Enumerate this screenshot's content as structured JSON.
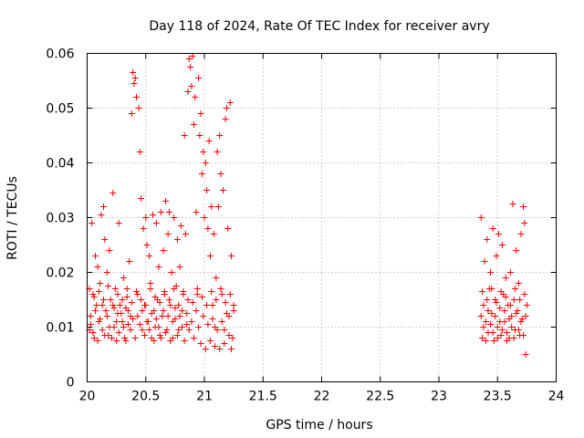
{
  "chart_data": {
    "type": "scatter",
    "title": "Day 118 of 2024, Rate Of TEC Index for receiver avry",
    "xlabel": "GPS time / hours",
    "ylabel": "ROTI / TECUs",
    "xlim": [
      20,
      24
    ],
    "ylim": [
      0,
      0.06
    ],
    "xticks": [
      20,
      20.5,
      21,
      21.5,
      22,
      22.5,
      23,
      23.5,
      24
    ],
    "xtick_labels": [
      "20",
      "20.5",
      "21",
      "21.5",
      "22",
      "22.5",
      "23",
      "23.5",
      "24"
    ],
    "yticks": [
      0,
      0.01,
      0.02,
      0.03,
      0.04,
      0.05,
      0.06
    ],
    "ytick_labels": [
      "0",
      "0.01",
      "0.02",
      "0.03",
      "0.04",
      "0.05",
      "0.06"
    ],
    "grid": true,
    "marker": "plus",
    "marker_color": "#ff0000",
    "series": [
      {
        "name": "ROTI",
        "points": [
          [
            20.02,
            0.0095
          ],
          [
            20.03,
            0.012
          ],
          [
            20.04,
            0.029
          ],
          [
            20.05,
            0.016
          ],
          [
            20.06,
            0.008
          ],
          [
            20.07,
            0.023
          ],
          [
            20.08,
            0.014
          ],
          [
            20.09,
            0.021
          ],
          [
            20.1,
            0.011
          ],
          [
            20.11,
            0.018
          ],
          [
            20.12,
            0.0305
          ],
          [
            20.13,
            0.0095
          ],
          [
            20.14,
            0.032
          ],
          [
            20.15,
            0.026
          ],
          [
            20.16,
            0.013
          ],
          [
            20.17,
            0.02
          ],
          [
            20.18,
            0.0085
          ],
          [
            20.19,
            0.024
          ],
          [
            20.2,
            0.015
          ],
          [
            20.22,
            0.0345
          ],
          [
            20.23,
            0.01
          ],
          [
            20.24,
            0.017
          ],
          [
            20.25,
            0.0075
          ],
          [
            20.26,
            0.0125
          ],
          [
            20.27,
            0.029
          ],
          [
            20.28,
            0.014
          ],
          [
            20.3,
            0.011
          ],
          [
            20.31,
            0.019
          ],
          [
            20.32,
            0.008
          ],
          [
            20.33,
            0.0135
          ],
          [
            20.34,
            0.0155
          ],
          [
            20.35,
            0.0105
          ],
          [
            20.36,
            0.022
          ],
          [
            20.37,
            0.012
          ],
          [
            20.38,
            0.049
          ],
          [
            20.39,
            0.0565
          ],
          [
            20.4,
            0.0545
          ],
          [
            20.41,
            0.0555
          ],
          [
            20.42,
            0.052
          ],
          [
            20.43,
            0.016
          ],
          [
            20.44,
            0.05
          ],
          [
            20.45,
            0.042
          ],
          [
            20.46,
            0.0335
          ],
          [
            20.47,
            0.0095
          ],
          [
            20.48,
            0.028
          ],
          [
            20.49,
            0.014
          ],
          [
            20.5,
            0.03
          ],
          [
            20.51,
            0.025
          ],
          [
            20.52,
            0.011
          ],
          [
            20.53,
            0.023
          ],
          [
            20.54,
            0.018
          ],
          [
            20.55,
            0.008
          ],
          [
            20.56,
            0.0305
          ],
          [
            20.57,
            0.013
          ],
          [
            20.58,
            0.01
          ],
          [
            20.59,
            0.029
          ],
          [
            20.6,
            0.015
          ],
          [
            20.61,
            0.021
          ],
          [
            20.62,
            0.0085
          ],
          [
            20.63,
            0.031
          ],
          [
            20.64,
            0.012
          ],
          [
            20.65,
            0.024
          ],
          [
            20.66,
            0.016
          ],
          [
            20.67,
            0.033
          ],
          [
            20.68,
            0.0095
          ],
          [
            20.69,
            0.027
          ],
          [
            20.7,
            0.031
          ],
          [
            20.71,
            0.014
          ],
          [
            20.72,
            0.02
          ],
          [
            20.73,
            0.008
          ],
          [
            20.74,
            0.03
          ],
          [
            20.75,
            0.0115
          ],
          [
            20.76,
            0.0175
          ],
          [
            20.77,
            0.026
          ],
          [
            20.78,
            0.0095
          ],
          [
            20.79,
            0.021
          ],
          [
            20.8,
            0.0285
          ],
          [
            20.81,
            0.013
          ],
          [
            20.82,
            0.016
          ],
          [
            20.83,
            0.045
          ],
          [
            20.84,
            0.027
          ],
          [
            20.85,
            0.0105
          ],
          [
            20.86,
            0.053
          ],
          [
            20.87,
            0.059
          ],
          [
            20.88,
            0.0575
          ],
          [
            20.89,
            0.054
          ],
          [
            20.9,
            0.0595
          ],
          [
            20.91,
            0.047
          ],
          [
            20.92,
            0.052
          ],
          [
            20.93,
            0.031
          ],
          [
            20.94,
            0.016
          ],
          [
            20.95,
            0.0555
          ],
          [
            20.96,
            0.045
          ],
          [
            20.97,
            0.049
          ],
          [
            20.98,
            0.038
          ],
          [
            20.99,
            0.042
          ],
          [
            21.0,
            0.03
          ],
          [
            21.01,
            0.04
          ],
          [
            21.02,
            0.035
          ],
          [
            21.03,
            0.028
          ],
          [
            21.04,
            0.044
          ],
          [
            21.05,
            0.023
          ],
          [
            21.06,
            0.032
          ],
          [
            21.07,
            0.014
          ],
          [
            21.08,
            0.027
          ],
          [
            21.09,
            0.01
          ],
          [
            21.1,
            0.019
          ],
          [
            21.11,
            0.042
          ],
          [
            21.12,
            0.032
          ],
          [
            21.13,
            0.045
          ],
          [
            21.14,
            0.038
          ],
          [
            21.15,
            0.016
          ],
          [
            21.16,
            0.035
          ],
          [
            21.17,
            0.0095
          ],
          [
            21.18,
            0.048
          ],
          [
            21.19,
            0.05
          ],
          [
            21.2,
            0.028
          ],
          [
            21.21,
            0.012
          ],
          [
            21.22,
            0.051
          ],
          [
            21.23,
            0.023
          ],
          [
            21.24,
            0.008
          ],
          [
            21.25,
            0.014
          ],
          [
            20.03,
            0.0105
          ],
          [
            20.05,
            0.009
          ],
          [
            20.07,
            0.013
          ],
          [
            20.09,
            0.0075
          ],
          [
            20.11,
            0.0115
          ],
          [
            20.13,
            0.014
          ],
          [
            20.15,
            0.0085
          ],
          [
            20.17,
            0.012
          ],
          [
            20.19,
            0.01
          ],
          [
            20.21,
            0.008
          ],
          [
            20.23,
            0.0135
          ],
          [
            20.25,
            0.011
          ],
          [
            20.27,
            0.009
          ],
          [
            20.29,
            0.0125
          ],
          [
            20.31,
            0.01
          ],
          [
            20.33,
            0.0075
          ],
          [
            20.35,
            0.013
          ],
          [
            20.37,
            0.0095
          ],
          [
            20.39,
            0.0115
          ],
          [
            20.41,
            0.008
          ],
          [
            20.43,
            0.012
          ],
          [
            20.45,
            0.0105
          ],
          [
            20.47,
            0.013
          ],
          [
            20.49,
            0.0085
          ],
          [
            20.51,
            0.011
          ],
          [
            20.53,
            0.0095
          ],
          [
            20.55,
            0.0125
          ],
          [
            20.57,
            0.0075
          ],
          [
            20.59,
            0.0115
          ],
          [
            20.61,
            0.01
          ],
          [
            20.63,
            0.008
          ],
          [
            20.65,
            0.013
          ],
          [
            20.67,
            0.009
          ],
          [
            20.69,
            0.012
          ],
          [
            20.71,
            0.0075
          ],
          [
            20.73,
            0.011
          ],
          [
            20.75,
            0.0135
          ],
          [
            20.77,
            0.0085
          ],
          [
            20.79,
            0.012
          ],
          [
            20.81,
            0.01
          ],
          [
            20.83,
            0.0075
          ],
          [
            20.85,
            0.0125
          ],
          [
            20.87,
            0.0095
          ],
          [
            20.89,
            0.011
          ],
          [
            20.91,
            0.008
          ],
          [
            20.93,
            0.013
          ],
          [
            20.95,
            0.01
          ],
          [
            20.97,
            0.007
          ],
          [
            20.99,
            0.012
          ],
          [
            21.01,
            0.006
          ],
          [
            21.03,
            0.0105
          ],
          [
            21.05,
            0.0075
          ],
          [
            21.07,
            0.0115
          ],
          [
            21.09,
            0.0065
          ],
          [
            21.11,
            0.0095
          ],
          [
            21.13,
            0.006
          ],
          [
            21.15,
            0.011
          ],
          [
            21.17,
            0.007
          ],
          [
            21.19,
            0.0125
          ],
          [
            21.21,
            0.0085
          ],
          [
            21.23,
            0.006
          ],
          [
            21.25,
            0.013
          ],
          [
            20.02,
            0.017
          ],
          [
            20.06,
            0.0155
          ],
          [
            20.1,
            0.0165
          ],
          [
            20.14,
            0.015
          ],
          [
            20.18,
            0.0175
          ],
          [
            20.22,
            0.014
          ],
          [
            20.26,
            0.016
          ],
          [
            20.3,
            0.015
          ],
          [
            20.34,
            0.017
          ],
          [
            20.38,
            0.0145
          ],
          [
            20.42,
            0.0165
          ],
          [
            20.46,
            0.015
          ],
          [
            20.5,
            0.014
          ],
          [
            20.54,
            0.017
          ],
          [
            20.58,
            0.0155
          ],
          [
            20.62,
            0.0145
          ],
          [
            20.66,
            0.0165
          ],
          [
            20.7,
            0.015
          ],
          [
            20.74,
            0.017
          ],
          [
            20.78,
            0.014
          ],
          [
            20.82,
            0.0165
          ],
          [
            20.86,
            0.015
          ],
          [
            20.9,
            0.0145
          ],
          [
            20.94,
            0.017
          ],
          [
            20.98,
            0.0155
          ],
          [
            21.02,
            0.014
          ],
          [
            21.06,
            0.0165
          ],
          [
            21.1,
            0.015
          ],
          [
            21.14,
            0.017
          ],
          [
            21.18,
            0.0145
          ],
          [
            21.22,
            0.016
          ],
          [
            23.36,
            0.03
          ],
          [
            23.37,
            0.008
          ],
          [
            23.38,
            0.014
          ],
          [
            23.39,
            0.022
          ],
          [
            23.4,
            0.011
          ],
          [
            23.41,
            0.026
          ],
          [
            23.42,
            0.009
          ],
          [
            23.43,
            0.017
          ],
          [
            23.44,
            0.02
          ],
          [
            23.45,
            0.0125
          ],
          [
            23.46,
            0.028
          ],
          [
            23.47,
            0.0075
          ],
          [
            23.48,
            0.015
          ],
          [
            23.49,
            0.023
          ],
          [
            23.5,
            0.01
          ],
          [
            23.51,
            0.027
          ],
          [
            23.52,
            0.0135
          ],
          [
            23.53,
            0.0085
          ],
          [
            23.54,
            0.025
          ],
          [
            23.55,
            0.016
          ],
          [
            23.56,
            0.011
          ],
          [
            23.57,
            0.019
          ],
          [
            23.58,
            0.009
          ],
          [
            23.59,
            0.014
          ],
          [
            23.6,
            0.008
          ],
          [
            23.61,
            0.02
          ],
          [
            23.62,
            0.012
          ],
          [
            23.63,
            0.0325
          ],
          [
            23.64,
            0.015
          ],
          [
            23.65,
            0.0095
          ],
          [
            23.66,
            0.024
          ],
          [
            23.67,
            0.013
          ],
          [
            23.68,
            0.018
          ],
          [
            23.69,
            0.0085
          ],
          [
            23.7,
            0.027
          ],
          [
            23.71,
            0.0115
          ],
          [
            23.72,
            0.032
          ],
          [
            23.73,
            0.029
          ],
          [
            23.74,
            0.005
          ],
          [
            23.75,
            0.014
          ],
          [
            23.36,
            0.012
          ],
          [
            23.38,
            0.01
          ],
          [
            23.4,
            0.0075
          ],
          [
            23.42,
            0.013
          ],
          [
            23.44,
            0.0105
          ],
          [
            23.46,
            0.009
          ],
          [
            23.48,
            0.012
          ],
          [
            23.5,
            0.008
          ],
          [
            23.52,
            0.011
          ],
          [
            23.54,
            0.0095
          ],
          [
            23.56,
            0.013
          ],
          [
            23.58,
            0.0075
          ],
          [
            23.6,
            0.0115
          ],
          [
            23.62,
            0.01
          ],
          [
            23.64,
            0.008
          ],
          [
            23.66,
            0.0125
          ],
          [
            23.68,
            0.0095
          ],
          [
            23.7,
            0.011
          ],
          [
            23.72,
            0.0085
          ],
          [
            23.74,
            0.012
          ],
          [
            23.37,
            0.0165
          ],
          [
            23.41,
            0.015
          ],
          [
            23.45,
            0.017
          ],
          [
            23.49,
            0.0145
          ],
          [
            23.53,
            0.0165
          ],
          [
            23.57,
            0.0155
          ],
          [
            23.61,
            0.014
          ],
          [
            23.65,
            0.017
          ],
          [
            23.69,
            0.015
          ],
          [
            23.73,
            0.016
          ]
        ]
      }
    ]
  }
}
